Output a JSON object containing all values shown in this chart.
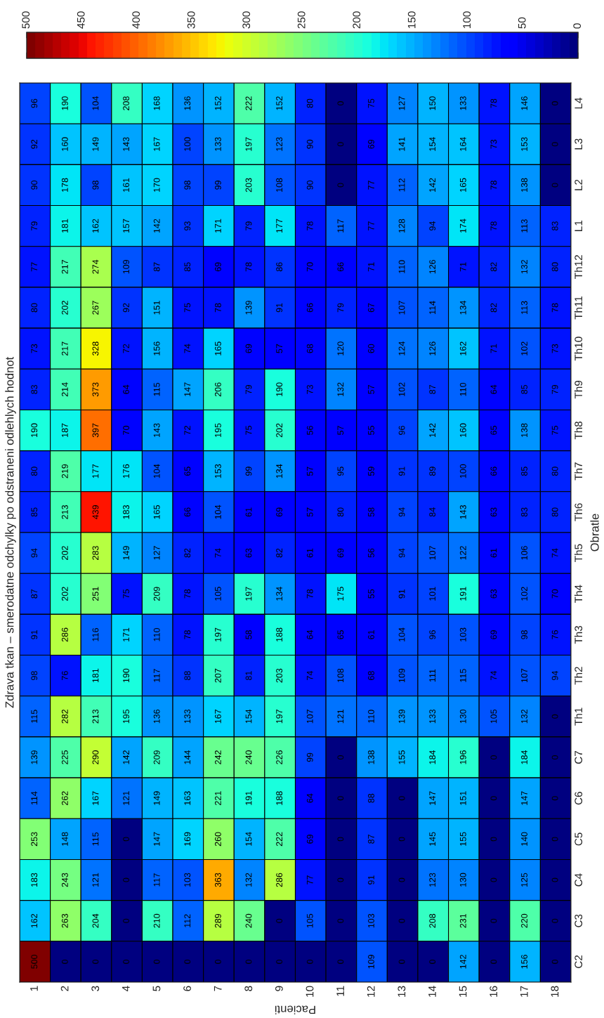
{
  "chart_data": {
    "type": "heatmap",
    "title": "Zdrava tkan – smerodatne odchylky po odstraneni odlehlych hodnot",
    "xlabel": "Pacienti",
    "ylabel": "Obratle",
    "categories": [
      "1",
      "2",
      "3",
      "4",
      "5",
      "6",
      "7",
      "8",
      "9",
      "10",
      "11",
      "12",
      "13",
      "14",
      "15",
      "16",
      "17",
      "18"
    ],
    "y_categories": [
      "L4",
      "L3",
      "L2",
      "L1",
      "Th12",
      "Th11",
      "Th10",
      "Th9",
      "Th8",
      "Th7",
      "Th6",
      "Th5",
      "Th4",
      "Th3",
      "Th2",
      "Th1",
      "C7",
      "C6",
      "C5",
      "C4",
      "C3",
      "C2"
    ],
    "cells": [
      [
        96,
        190,
        104,
        208,
        168,
        136,
        152,
        222,
        152,
        80,
        0,
        75,
        127,
        150,
        133,
        78,
        146,
        0
      ],
      [
        92,
        160,
        149,
        143,
        167,
        100,
        133,
        197,
        123,
        90,
        0,
        69,
        141,
        154,
        164,
        73,
        153,
        0
      ],
      [
        90,
        178,
        98,
        161,
        170,
        98,
        99,
        203,
        108,
        90,
        0,
        77,
        112,
        142,
        165,
        78,
        138,
        0
      ],
      [
        79,
        181,
        162,
        157,
        142,
        93,
        171,
        79,
        177,
        78,
        117,
        77,
        128,
        94,
        174,
        78,
        113,
        83
      ],
      [
        77,
        217,
        274,
        109,
        87,
        85,
        69,
        78,
        86,
        70,
        66,
        71,
        110,
        126,
        71,
        82,
        132,
        80
      ],
      [
        80,
        202,
        267,
        92,
        151,
        75,
        78,
        139,
        91,
        66,
        79,
        67,
        107,
        114,
        134,
        82,
        113,
        78
      ],
      [
        73,
        217,
        328,
        72,
        156,
        74,
        165,
        69,
        57,
        68,
        120,
        60,
        124,
        126,
        162,
        71,
        102,
        73
      ],
      [
        83,
        214,
        373,
        64,
        115,
        147,
        206,
        79,
        190,
        73,
        132,
        57,
        102,
        87,
        110,
        64,
        85,
        79
      ],
      [
        190,
        187,
        397,
        70,
        143,
        72,
        195,
        75,
        202,
        56,
        57,
        55,
        96,
        142,
        160,
        65,
        138,
        75
      ],
      [
        80,
        219,
        177,
        176,
        104,
        65,
        153,
        99,
        134,
        57,
        95,
        59,
        91,
        89,
        100,
        66,
        85,
        80
      ],
      [
        85,
        213,
        439,
        183,
        165,
        66,
        104,
        61,
        69,
        57,
        80,
        58,
        94,
        84,
        143,
        63,
        83,
        80
      ],
      [
        94,
        202,
        283,
        149,
        127,
        82,
        74,
        63,
        82,
        61,
        69,
        56,
        94,
        107,
        122,
        61,
        106,
        74
      ],
      [
        87,
        202,
        251,
        75,
        209,
        78,
        105,
        197,
        134,
        78,
        175,
        55,
        91,
        101,
        191,
        63,
        102,
        70
      ],
      [
        91,
        286,
        116,
        171,
        110,
        78,
        197,
        58,
        188,
        64,
        65,
        61,
        104,
        96,
        103,
        69,
        98,
        76
      ],
      [
        98,
        76,
        181,
        190,
        117,
        88,
        207,
        81,
        203,
        74,
        108,
        68,
        109,
        111,
        115,
        74,
        107,
        94
      ],
      [
        115,
        282,
        213,
        195,
        136,
        133,
        167,
        154,
        197,
        107,
        121,
        110,
        139,
        133,
        130,
        105,
        132,
        0
      ],
      [
        139,
        225,
        290,
        142,
        209,
        144,
        242,
        240,
        226,
        99,
        0,
        138,
        155,
        184,
        196,
        0,
        184,
        0
      ],
      [
        114,
        262,
        167,
        121,
        149,
        163,
        221,
        191,
        188,
        64,
        0,
        88,
        0,
        147,
        151,
        0,
        147,
        0
      ],
      [
        253,
        148,
        115,
        0,
        147,
        169,
        260,
        154,
        222,
        69,
        0,
        87,
        0,
        145,
        155,
        0,
        140,
        0
      ],
      [
        183,
        243,
        121,
        0,
        117,
        103,
        363,
        132,
        286,
        77,
        0,
        91,
        0,
        123,
        130,
        0,
        125,
        0
      ],
      [
        162,
        263,
        204,
        0,
        210,
        112,
        289,
        240,
        0,
        105,
        0,
        103,
        0,
        208,
        231,
        0,
        220,
        0
      ],
      [
        500,
        0,
        0,
        0,
        0,
        0,
        0,
        0,
        0,
        0,
        0,
        109,
        0,
        0,
        142,
        0,
        156,
        0
      ]
    ],
    "clim": [
      0,
      500
    ],
    "cticks": [
      0,
      50,
      100,
      150,
      200,
      250,
      300,
      350,
      400,
      450,
      500
    ],
    "data_labels": true
  }
}
